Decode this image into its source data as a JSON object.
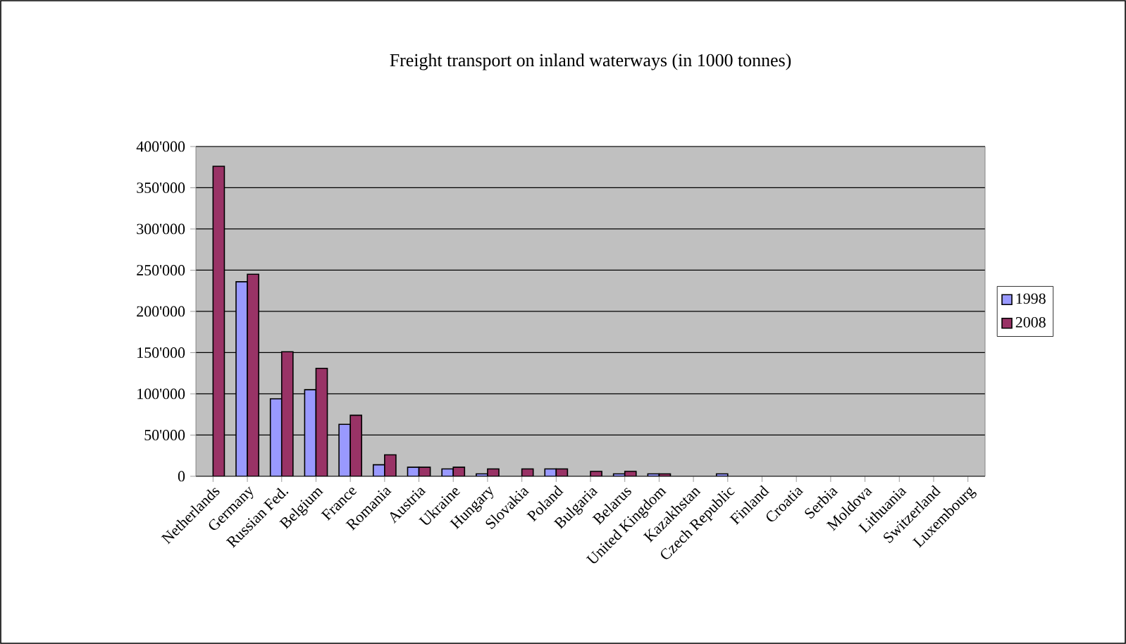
{
  "chart_data": {
    "type": "bar",
    "title": "Freight transport on inland waterways  (in 1000 tonnes)",
    "categories": [
      "Netherlands",
      "Germany",
      "Russian Fed.",
      "Belgium",
      "France",
      "Romania",
      "Austria",
      "Ukraine",
      "Hungary",
      "Slovakia",
      "Poland",
      "Bulgaria",
      "Belarus",
      "United Kingdom",
      "Kazakhstan",
      "Czech Republic",
      "Finland",
      "Croatia",
      "Serbia",
      "Moldova",
      "Lithuania",
      "Switzerland",
      "Luxembourg"
    ],
    "series": [
      {
        "name": "1998",
        "color": "#9999ff",
        "values": [
          null,
          236000,
          94000,
          105000,
          63000,
          14000,
          11000,
          9000,
          3000,
          null,
          9000,
          null,
          3000,
          3000,
          null,
          3000,
          null,
          null,
          null,
          null,
          null,
          null,
          null
        ]
      },
      {
        "name": "2008",
        "color": "#993366",
        "values": [
          376000,
          245000,
          151000,
          131000,
          74000,
          26000,
          11000,
          11000,
          9000,
          9000,
          9000,
          6000,
          6000,
          3000,
          null,
          null,
          null,
          null,
          null,
          null,
          null,
          null,
          null
        ]
      }
    ],
    "ylim": [
      0,
      400000
    ],
    "yticks": [
      0,
      {
        "value": 50000,
        "label": "50'000"
      },
      {
        "value": 100000,
        "label": "100'000"
      },
      {
        "value": 150000,
        "label": "150'000"
      },
      {
        "value": 200000,
        "label": "200'000"
      },
      {
        "value": 250000,
        "label": "250'000"
      },
      {
        "value": 300000,
        "label": "300'000"
      },
      {
        "value": 350000,
        "label": "350'000"
      },
      {
        "value": 400000,
        "label": "400'000"
      }
    ],
    "grid": "y",
    "legend": "right"
  }
}
